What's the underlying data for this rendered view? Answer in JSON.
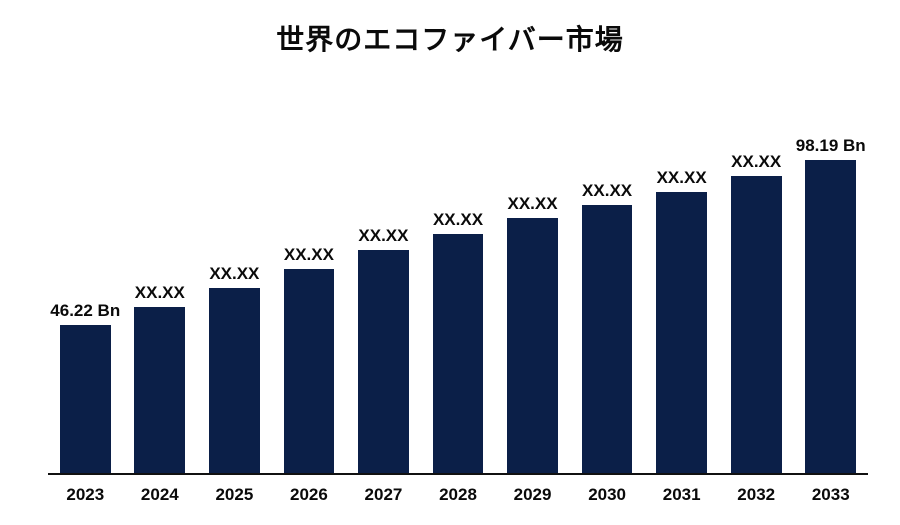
{
  "chart": {
    "type": "bar",
    "title": "世界のエコファイバー市場",
    "title_fontsize": 28,
    "background_color": "#ffffff",
    "bar_color": "#0b1f48",
    "axis_color": "#111111",
    "label_color": "#0a0a0a",
    "label_fontsize": 17,
    "xaxis_fontsize": 17,
    "bar_width_ratio": 0.68,
    "ylim": [
      0,
      120
    ],
    "unit": "Bn",
    "categories": [
      "2023",
      "2024",
      "2025",
      "2026",
      "2027",
      "2028",
      "2029",
      "2030",
      "2031",
      "2032",
      "2033"
    ],
    "values": [
      46.22,
      52,
      58,
      64,
      70,
      75,
      80,
      84,
      88,
      93,
      98.19
    ],
    "value_labels": [
      "46.22 Bn",
      "XX.XX",
      "XX.XX",
      "XX.XX",
      "XX.XX",
      "XX.XX",
      "XX.XX",
      "XX.XX",
      "XX.XX",
      "XX.XX",
      "98.19 Bn"
    ]
  }
}
